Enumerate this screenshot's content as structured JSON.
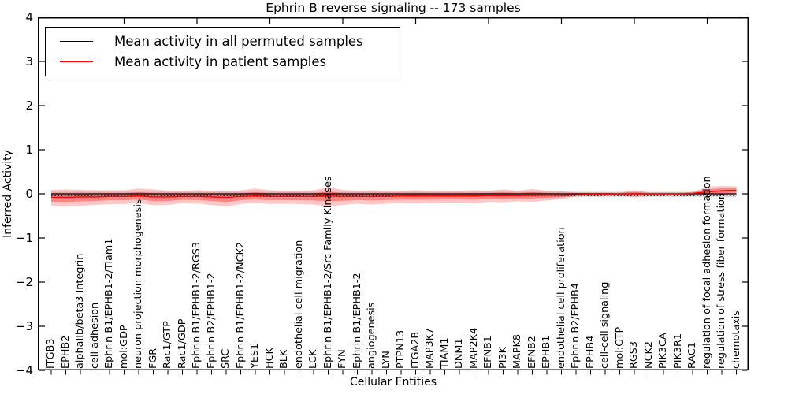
{
  "title": "Ephrin B reverse signaling -- 173 samples",
  "legend": {
    "items": [
      {
        "label": "Mean activity in all permuted samples",
        "color": "#000000"
      },
      {
        "label": "Mean activity in patient samples",
        "color": "#ff0000"
      }
    ]
  },
  "axes": {
    "xlabel": "Cellular Entities",
    "ylabel": "Inferred Activity",
    "ytick_labels": [
      "4",
      "3",
      "2",
      "1",
      "0",
      "−1",
      "−2",
      "−3",
      "−4"
    ]
  },
  "chart_data": {
    "type": "area",
    "title": "Ephrin B reverse signaling -- 173 samples",
    "xlabel": "Cellular Entities",
    "ylabel": "Inferred Activity",
    "ylim": [
      -4,
      4
    ],
    "yticks": [
      4,
      3,
      2,
      1,
      0,
      -1,
      -2,
      -3,
      -4
    ],
    "grid": false,
    "legend_position": "upper left",
    "zero_line_style": "dotted",
    "top_tick_indices": [
      5,
      10,
      15,
      20,
      25,
      30,
      35,
      40,
      45
    ],
    "categories": [
      "ITGB3",
      "EPHB2",
      "alphaIIb/beta3 Integrin",
      "cell adhesion",
      "Ephrin B1/EPHB1-2/Tiam1",
      "mol:GDP",
      "neuron projection morphogenesis",
      "FGR",
      "Rac1/GTP",
      "Rac1/GDP",
      "Ephrin B1/EPHB1-2/RGS3",
      "Ephrin B2/EPHB1-2",
      "SRC",
      "Ephrin B1/EPHB1-2/NCK2",
      "YES1",
      "HCK",
      "BLK",
      "endothelial cell migration",
      "LCK",
      "Ephrin B1/EPHB1-2/Src Family Kinases",
      "FYN",
      "Ephrin B1/EPHB1-2",
      "angiogenesis",
      "LYN",
      "PTPN13",
      "ITGA2B",
      "MAP3K7",
      "TIAM1",
      "DNM1",
      "MAP2K4",
      "EFNB1",
      "PI3K",
      "MAPK8",
      "EFNB2",
      "EPHB1",
      "endothelial cell proliferation",
      "Ephrin B2/EPHB4",
      "EPHB4",
      "cell-cell signaling",
      "mol:GTP",
      "RGS3",
      "NCK2",
      "PIK3CA",
      "PIK3R1",
      "RAC1",
      "regulation of focal adhesion formation",
      "regulation of stress fiber formation",
      "chemotaxis"
    ],
    "series": [
      {
        "name": "Mean activity in all permuted samples",
        "color": "#000000",
        "line_style": "solid",
        "values": [
          0,
          0,
          0,
          0,
          0,
          0,
          0,
          0,
          0,
          0,
          0,
          0,
          0,
          0,
          0,
          0,
          0,
          0,
          0,
          0,
          0,
          0,
          0,
          0,
          0,
          0,
          0,
          0,
          0,
          0,
          0,
          0,
          0,
          0,
          0,
          0,
          0,
          0,
          0,
          0,
          0,
          0,
          0,
          0,
          0,
          0,
          0,
          0
        ],
        "band_upper_constant": 0.045,
        "band_lower_constant": -0.07,
        "band_color": "#000000",
        "band_opacity": 0.15
      },
      {
        "name": "Mean activity in patient samples",
        "color": "#ff0000",
        "line_style": "solid",
        "values": [
          -0.08,
          -0.08,
          -0.07,
          -0.07,
          -0.06,
          -0.06,
          -0.05,
          -0.07,
          -0.07,
          -0.06,
          -0.06,
          -0.07,
          -0.08,
          -0.06,
          -0.05,
          -0.06,
          -0.06,
          -0.06,
          -0.06,
          -0.05,
          -0.06,
          -0.06,
          -0.06,
          -0.06,
          -0.05,
          -0.05,
          -0.05,
          -0.05,
          -0.05,
          -0.05,
          -0.04,
          -0.04,
          -0.04,
          -0.03,
          -0.03,
          -0.03,
          -0.02,
          -0.01,
          -0.01,
          0.0,
          0.0,
          0.0,
          0.0,
          0.0,
          0.01,
          0.04,
          0.07,
          0.08
        ],
        "band_upper": [
          0.09,
          0.1,
          0.09,
          0.08,
          0.08,
          0.08,
          0.12,
          0.1,
          0.07,
          0.07,
          0.08,
          0.07,
          0.06,
          0.08,
          0.12,
          0.08,
          0.07,
          0.07,
          0.08,
          0.15,
          0.09,
          0.07,
          0.08,
          0.07,
          0.07,
          0.08,
          0.07,
          0.07,
          0.07,
          0.08,
          0.07,
          0.1,
          0.07,
          0.11,
          0.07,
          0.06,
          0.03,
          0.03,
          0.03,
          0.03,
          0.08,
          0.03,
          0.03,
          0.03,
          0.04,
          0.16,
          0.18,
          0.17
        ],
        "band_lower": [
          -0.27,
          -0.29,
          -0.27,
          -0.25,
          -0.23,
          -0.23,
          -0.2,
          -0.26,
          -0.25,
          -0.21,
          -0.22,
          -0.25,
          -0.29,
          -0.23,
          -0.2,
          -0.23,
          -0.22,
          -0.23,
          -0.24,
          -0.29,
          -0.25,
          -0.22,
          -0.24,
          -0.22,
          -0.21,
          -0.22,
          -0.21,
          -0.2,
          -0.2,
          -0.21,
          -0.18,
          -0.19,
          -0.17,
          -0.18,
          -0.15,
          -0.12,
          -0.06,
          -0.05,
          -0.05,
          -0.04,
          -0.08,
          -0.04,
          -0.04,
          -0.04,
          -0.04,
          -0.04,
          -0.02,
          -0.01
        ],
        "band_color": "#ff0000",
        "band_opacity": 0.22,
        "inner_band_opacity": 0.33
      }
    ]
  }
}
